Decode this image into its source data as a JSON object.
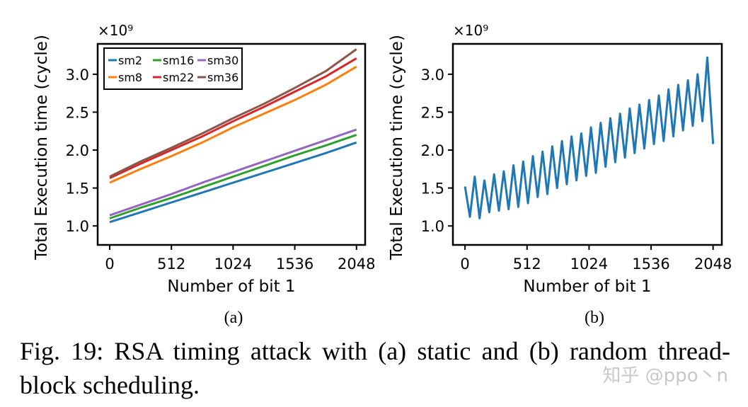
{
  "caption": {
    "text": "Fig. 19: RSA timing attack with (a) static and (b) random thread-block scheduling."
  },
  "watermark": "知乎 @ppo丶n",
  "chart_data": [
    {
      "type": "line",
      "panel_label": "(a)",
      "title": "",
      "xlabel": "Number of bit 1",
      "ylabel": "Total Execution time (cycle)",
      "y_multiplier": "×10⁹",
      "xlim": [
        -100,
        2120
      ],
      "ylim": [
        0.75,
        3.4
      ],
      "xticks": [
        0,
        512,
        1024,
        1536,
        2048
      ],
      "xtick_labels": [
        "0",
        "512",
        "1024",
        "1536",
        "2048"
      ],
      "yticks": [
        1.0,
        1.5,
        2.0,
        2.5,
        3.0
      ],
      "ytick_labels": [
        "1.0",
        "1.5",
        "2.0",
        "2.5",
        "3.0"
      ],
      "legend_position": "top-left",
      "legend": [
        "sm2",
        "sm16",
        "sm30",
        "sm8",
        "sm22",
        "sm36"
      ],
      "x": [
        0,
        256,
        512,
        768,
        1024,
        1280,
        1536,
        1792,
        2048
      ],
      "series": [
        {
          "name": "sm2",
          "color": "#1f77b4",
          "values": [
            1.05,
            1.18,
            1.31,
            1.44,
            1.57,
            1.7,
            1.83,
            1.96,
            2.1
          ]
        },
        {
          "name": "sm16",
          "color": "#2ca02c",
          "values": [
            1.1,
            1.24,
            1.37,
            1.51,
            1.65,
            1.79,
            1.93,
            2.06,
            2.2
          ]
        },
        {
          "name": "sm30",
          "color": "#9467bd",
          "values": [
            1.14,
            1.28,
            1.42,
            1.57,
            1.71,
            1.85,
            1.99,
            2.13,
            2.27
          ]
        },
        {
          "name": "sm8",
          "color": "#ff7f0e",
          "values": [
            1.57,
            1.75,
            1.92,
            2.1,
            2.3,
            2.48,
            2.66,
            2.86,
            3.1
          ]
        },
        {
          "name": "sm22",
          "color": "#d62728",
          "values": [
            1.63,
            1.82,
            2.0,
            2.18,
            2.38,
            2.57,
            2.77,
            2.97,
            3.21
          ]
        },
        {
          "name": "sm36",
          "color": "#8c564b",
          "values": [
            1.65,
            1.85,
            2.03,
            2.22,
            2.42,
            2.61,
            2.82,
            3.04,
            3.33
          ]
        }
      ]
    },
    {
      "type": "line",
      "panel_label": "(b)",
      "title": "",
      "xlabel": "Number of bit 1",
      "ylabel": "Total Execution time (cycle)",
      "y_multiplier": "×10⁹",
      "xlim": [
        -100,
        2120
      ],
      "ylim": [
        0.75,
        3.4
      ],
      "xticks": [
        0,
        512,
        1024,
        1536,
        2048
      ],
      "xtick_labels": [
        "0",
        "512",
        "1024",
        "1536",
        "2048"
      ],
      "yticks": [
        1.0,
        1.5,
        2.0,
        2.5,
        3.0
      ],
      "ytick_labels": [
        "1.0",
        "1.5",
        "2.0",
        "2.5",
        "3.0"
      ],
      "legend": [],
      "series": [
        {
          "name": "random",
          "color": "#1f77b4",
          "x": [
            0,
            40,
            80,
            120,
            160,
            200,
            240,
            280,
            320,
            360,
            400,
            440,
            480,
            520,
            560,
            600,
            640,
            680,
            720,
            760,
            800,
            840,
            880,
            920,
            960,
            1000,
            1040,
            1080,
            1120,
            1160,
            1200,
            1240,
            1280,
            1320,
            1360,
            1400,
            1440,
            1480,
            1520,
            1560,
            1600,
            1640,
            1680,
            1720,
            1760,
            1800,
            1840,
            1880,
            1920,
            1960,
            2000,
            2048
          ],
          "values": [
            1.52,
            1.12,
            1.65,
            1.1,
            1.6,
            1.18,
            1.68,
            1.2,
            1.72,
            1.22,
            1.8,
            1.25,
            1.85,
            1.3,
            1.92,
            1.38,
            1.98,
            1.42,
            2.05,
            1.5,
            2.12,
            1.55,
            2.18,
            1.6,
            2.22,
            1.66,
            2.3,
            1.7,
            2.36,
            1.78,
            2.42,
            1.84,
            2.48,
            1.9,
            2.55,
            1.96,
            2.6,
            2.02,
            2.66,
            2.08,
            2.72,
            2.12,
            2.8,
            2.18,
            2.86,
            2.26,
            2.92,
            2.32,
            3.0,
            2.38,
            3.22,
            2.08
          ]
        }
      ]
    }
  ]
}
